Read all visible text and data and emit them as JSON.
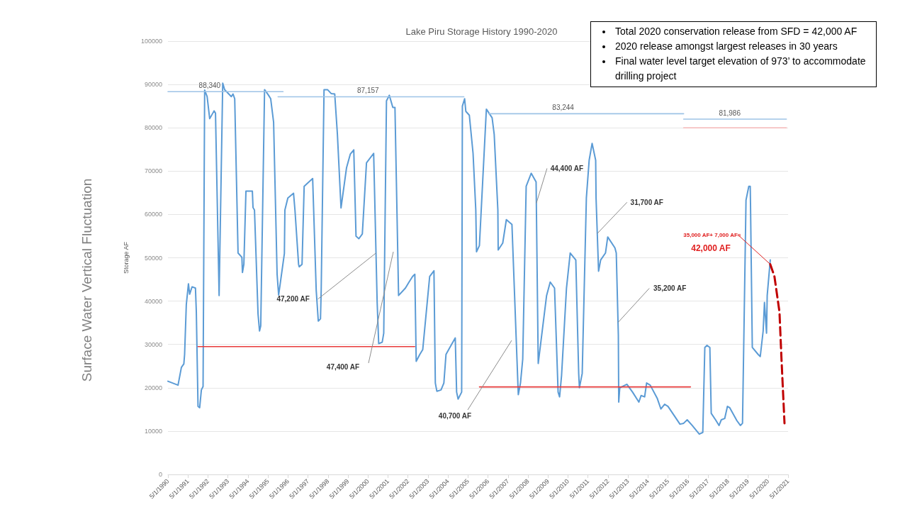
{
  "chart_data": {
    "type": "line",
    "title": "Lake Piru Storage History 1990-2020",
    "ylabel": "Storage AF",
    "grid": "y",
    "marker": "none",
    "line_style": "solid",
    "xlim": [
      "1990-05-01",
      "2021-05-01"
    ],
    "xticks": [
      {
        "value": "1990-05-01",
        "label": "5/1/1990"
      },
      {
        "value": "1991-05-01",
        "label": "5/1/1991"
      },
      {
        "value": "1992-05-01",
        "label": "5/1/1992"
      },
      {
        "value": "1993-05-01",
        "label": "5/1/1993"
      },
      {
        "value": "1994-05-01",
        "label": "5/1/1994"
      },
      {
        "value": "1995-05-01",
        "label": "5/1/1995"
      },
      {
        "value": "1996-05-01",
        "label": "5/1/1996"
      },
      {
        "value": "1997-05-01",
        "label": "5/1/1997"
      },
      {
        "value": "1998-05-01",
        "label": "5/1/1998"
      },
      {
        "value": "1999-05-01",
        "label": "5/1/1999"
      },
      {
        "value": "2000-05-01",
        "label": "5/1/2000"
      },
      {
        "value": "2001-05-01",
        "label": "5/1/2001"
      },
      {
        "value": "2002-05-01",
        "label": "5/1/2002"
      },
      {
        "value": "2003-05-01",
        "label": "5/1/2003"
      },
      {
        "value": "2004-05-01",
        "label": "5/1/2004"
      },
      {
        "value": "2005-05-01",
        "label": "5/1/2005"
      },
      {
        "value": "2006-05-01",
        "label": "5/1/2006"
      },
      {
        "value": "2007-05-01",
        "label": "5/1/2007"
      },
      {
        "value": "2008-05-01",
        "label": "5/1/2008"
      },
      {
        "value": "2009-05-01",
        "label": "5/1/2009"
      },
      {
        "value": "2010-05-01",
        "label": "5/1/2010"
      },
      {
        "value": "2011-05-01",
        "label": "5/1/2011"
      },
      {
        "value": "2012-05-01",
        "label": "5/1/2012"
      },
      {
        "value": "2013-05-01",
        "label": "5/1/2013"
      },
      {
        "value": "2014-05-01",
        "label": "5/1/2014"
      },
      {
        "value": "2015-05-01",
        "label": "5/1/2015"
      },
      {
        "value": "2016-05-01",
        "label": "5/1/2016"
      },
      {
        "value": "2017-05-01",
        "label": "5/1/2017"
      },
      {
        "value": "2018-05-01",
        "label": "5/1/2018"
      },
      {
        "value": "2019-05-01",
        "label": "5/1/2019"
      },
      {
        "value": "2020-05-01",
        "label": "5/1/2020"
      },
      {
        "value": "2021-05-01",
        "label": "5/1/2021"
      }
    ],
    "ylim": [
      0,
      100000
    ],
    "yticks": [
      0,
      10000,
      20000,
      30000,
      40000,
      50000,
      60000,
      70000,
      80000,
      90000,
      100000
    ],
    "series": [
      {
        "color": "#5b9bd5",
        "x": [
          "1990-05-01",
          "1990-11-01",
          "1991-01-01",
          "1991-02-15",
          "1991-03-01",
          "1991-04-01",
          "1991-05-10",
          "1991-06-01",
          "1991-07-15",
          "1991-09-15",
          "1991-10-01",
          "1991-11-01",
          "1991-12-01",
          "1992-01-01",
          "1992-02-01",
          "1992-03-01",
          "1992-04-15",
          "1992-06-01",
          "1992-08-20",
          "1992-09-15",
          "1992-11-20",
          "1993-01-25",
          "1993-03-01",
          "1993-07-01",
          "1993-08-01",
          "1993-09-01",
          "1993-11-01",
          "1994-01-10",
          "1994-01-20",
          "1994-02-15",
          "1994-03-25",
          "1994-07-20",
          "1994-08-01",
          "1994-08-28",
          "1994-11-01",
          "1994-11-28",
          "1994-12-20",
          "1995-02-28",
          "1995-05-12",
          "1995-06-20",
          "1995-08-12",
          "1995-10-15",
          "1995-11-12",
          "1996-02-25",
          "1996-03-05",
          "1996-04-28",
          "1996-08-10",
          "1996-09-05",
          "1996-11-10",
          "1996-11-22",
          "1997-01-12",
          "1997-02-20",
          "1997-07-25",
          "1997-09-28",
          "1997-11-05",
          "1997-12-15",
          "1997-12-28",
          "1998-02-18",
          "1998-04-22",
          "1998-06-28",
          "1998-09-01",
          "1998-10-20",
          "1998-12-25",
          "1999-04-05",
          "1999-06-12",
          "1999-08-15",
          "1999-09-25",
          "1999-11-15",
          "2000-01-18",
          "2000-04-03",
          "2000-08-12",
          "2000-10-15",
          "2000-11-12",
          "2001-01-15",
          "2001-02-12",
          "2001-04-03",
          "2001-05-25",
          "2001-07-28",
          "2001-09-05",
          "2001-11-10",
          "2002-03-15",
          "2002-05-20",
          "2002-07-25",
          "2002-09-03",
          "2002-09-28",
          "2002-12-03",
          "2003-01-25",
          "2003-06-01",
          "2003-08-18",
          "2003-09-12",
          "2003-10-10",
          "2003-12-25",
          "2004-02-15",
          "2004-03-25",
          "2004-06-25",
          "2004-09-10",
          "2004-10-05",
          "2004-11-01",
          "2005-01-05",
          "2005-01-18",
          "2005-02-28",
          "2005-03-22",
          "2005-05-25",
          "2005-08-01",
          "2005-09-20",
          "2005-10-03",
          "2005-11-25",
          "2006-04-01",
          "2006-07-15",
          "2006-08-22",
          "2006-10-28",
          "2006-11-03",
          "2007-01-25",
          "2007-04-01",
          "2007-07-12",
          "2007-11-05",
          "2007-12-15",
          "2008-01-25",
          "2008-03-28",
          "2008-06-28",
          "2008-09-25",
          "2008-11-03",
          "2009-01-05",
          "2009-04-05",
          "2009-06-10",
          "2009-08-28",
          "2009-11-01",
          "2009-11-28",
          "2010-01-03",
          "2010-04-03",
          "2010-06-10",
          "2010-09-20",
          "2010-11-12",
          "2010-11-25",
          "2011-01-15",
          "2011-04-01",
          "2011-05-22",
          "2011-07-15",
          "2011-09-18",
          "2011-09-25",
          "2011-11-10",
          "2011-12-18",
          "2012-03-15",
          "2012-04-25",
          "2012-09-03",
          "2012-09-28",
          "2012-11-05",
          "2012-11-12",
          "2012-12-01",
          "2013-04-10",
          "2013-07-22",
          "2013-11-15",
          "2013-12-25",
          "2014-02-28",
          "2014-04-05",
          "2014-06-10",
          "2014-10-18",
          "2014-12-22",
          "2015-02-28",
          "2015-05-01",
          "2015-12-05",
          "2016-02-10",
          "2016-04-15",
          "2016-07-15",
          "2016-11-22",
          "2017-01-25",
          "2017-03-03",
          "2017-04-12",
          "2017-06-03",
          "2017-06-28",
          "2017-09-15",
          "2017-11-18",
          "2017-12-28",
          "2018-03-01",
          "2018-04-20",
          "2018-06-01",
          "2018-10-10",
          "2018-12-12",
          "2019-01-20",
          "2019-03-25",
          "2019-05-15",
          "2019-06-10",
          "2019-06-15",
          "2019-07-18",
          "2019-11-01",
          "2019-12-10",
          "2020-02-01",
          "2020-02-25",
          "2020-04-03",
          "2020-04-15",
          "2020-06-10"
        ],
        "values": [
          21500,
          20600,
          24700,
          25500,
          27700,
          39200,
          44000,
          41600,
          43300,
          43000,
          37500,
          15700,
          15400,
          19500,
          20300,
          88700,
          87200,
          82100,
          83900,
          83400,
          41300,
          90300,
          88800,
          87200,
          87800,
          86700,
          51100,
          50100,
          46600,
          48500,
          65400,
          65400,
          61600,
          61000,
          37000,
          33100,
          34300,
          88800,
          87500,
          86700,
          81300,
          46200,
          41400,
          51000,
          61000,
          63800,
          64900,
          61000,
          48500,
          47900,
          48500,
          66500,
          68300,
          42500,
          35400,
          35900,
          42500,
          88800,
          88800,
          87900,
          87800,
          78500,
          61500,
          70800,
          73900,
          74900,
          55000,
          54400,
          55500,
          71900,
          74100,
          39700,
          30200,
          30500,
          32600,
          86200,
          87500,
          84700,
          84700,
          41300,
          43000,
          44400,
          45700,
          46200,
          26100,
          27700,
          28800,
          45700,
          47000,
          21100,
          19200,
          19500,
          21100,
          27700,
          29800,
          31500,
          19000,
          17400,
          19000,
          85000,
          86700,
          83800,
          82900,
          74100,
          61000,
          51400,
          52800,
          84300,
          82300,
          78500,
          61000,
          51800,
          53400,
          58800,
          57700,
          18400,
          21100,
          26600,
          66500,
          69500,
          67500,
          25600,
          32100,
          41300,
          44400,
          43000,
          19000,
          17900,
          22800,
          43000,
          51100,
          49500,
          23300,
          20000,
          23300,
          63800,
          72500,
          76400,
          72500,
          63800,
          46900,
          49500,
          51100,
          54800,
          52300,
          51100,
          32100,
          16700,
          20000,
          20800,
          19000,
          16700,
          18200,
          17900,
          21100,
          20600,
          17500,
          15100,
          16200,
          15700,
          11600,
          11800,
          12600,
          11300,
          9300,
          9700,
          29300,
          29800,
          29300,
          14100,
          12600,
          11300,
          12600,
          12900,
          15700,
          15400,
          12400,
          11300,
          11800,
          63300,
          66500,
          66500,
          62600,
          29300,
          27700,
          27200,
          33100,
          39700,
          32600,
          41300,
          49500
        ]
      },
      {
        "color": "#c00000",
        "line_style": "dashed",
        "x": [
          "2020-06-10",
          "2020-08-25",
          "2020-11-25",
          "2021-01-01",
          "2021-02-25"
        ],
        "values": [
          48500,
          45700,
          37500,
          26600,
          11800
        ]
      },
      {
        "color": "#e83a3a",
        "x": [
          "1991-11-01",
          "2002-09-01"
        ],
        "values": [
          29500,
          29500
        ]
      },
      {
        "color": "#e83a3a",
        "x": [
          "2005-11-25",
          "2016-06-15"
        ],
        "values": [
          20200,
          20200
        ]
      },
      {
        "color": "#9dc3e6",
        "x": [
          "1990-05-01",
          "1996-02-01"
        ],
        "values": [
          88340,
          88340
        ]
      },
      {
        "color": "#9dc3e6",
        "x": [
          "1995-11-01",
          "2005-02-15"
        ],
        "values": [
          87157,
          87157
        ]
      },
      {
        "color": "#9dc3e6",
        "x": [
          "2006-05-10",
          "2016-02-10"
        ],
        "values": [
          83244,
          83244
        ]
      },
      {
        "color": "#9dc3e6",
        "x": [
          "2016-02-10",
          "2021-04-01"
        ],
        "values": [
          81986,
          81986
        ]
      },
      {
        "color": "#f4b6b6",
        "x": [
          "2016-02-10",
          "2021-04-01"
        ],
        "values": [
          80000,
          80000
        ]
      }
    ],
    "annotations": [
      "Surface Water Vertical Fluctuation",
      "Total 2020 conservation release from SFD = 42,000 AF",
      "2020 release amongst largest releases in 30 years",
      "Final water level target elevation of  973’ to accommodate drilling project",
      {
        "text": "88,340",
        "x": "1992-06",
        "y": 88340
      },
      {
        "text": "87,157",
        "x": "2000-05",
        "y": 87157
      },
      {
        "text": "83,244",
        "x": "2010-02",
        "y": 83244
      },
      {
        "text": "81,986",
        "x": "2018-06",
        "y": 81986
      },
      {
        "text": "47,200 AF",
        "x": "2000-09-24",
        "y": 51100
      },
      "47,400 AF",
      "40,700 AF",
      {
        "text": "44,400 AF",
        "x": "2008-09-30",
        "y": 62600
      },
      {
        "text": "31,700 AF",
        "x": "2011-10-17",
        "y": 55600
      },
      {
        "text": "35,200 AF",
        "x": "2012-11-01",
        "y": 35100
      },
      {
        "text": "35,000 AF+ 7,000 AF=",
        "x": "2020-06-10",
        "y": 48500
      },
      "42,000 AF"
    ]
  }
}
